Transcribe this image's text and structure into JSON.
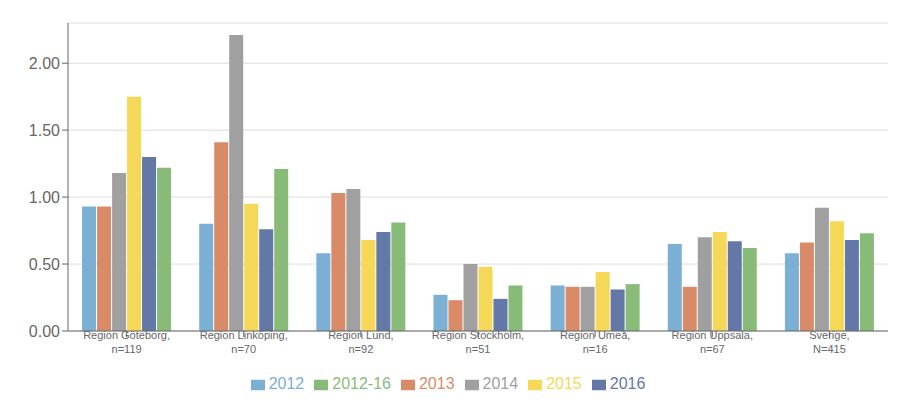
{
  "chart_data": {
    "type": "bar",
    "categories": [
      "Region Göteborg,\nn=119",
      "Region Linköping,\nn=70",
      "Region Lund,\nn=92",
      "Region Stockholm,\nn=51",
      "Region Umeå,\nn=16",
      "Region Uppsala,\nn=67",
      "Sverige,\nN=415"
    ],
    "series": [
      {
        "name": "2012",
        "color": "#7bafd4",
        "values": [
          0.93,
          0.8,
          0.58,
          0.27,
          0.34,
          0.65,
          0.58
        ]
      },
      {
        "name": "2013",
        "color": "#d98b68",
        "values": [
          0.93,
          1.41,
          1.03,
          0.23,
          0.33,
          0.33,
          0.66
        ]
      },
      {
        "name": "2014",
        "color": "#a0a0a0",
        "values": [
          1.18,
          2.21,
          1.06,
          0.5,
          0.33,
          0.7,
          0.92
        ]
      },
      {
        "name": "2015",
        "color": "#f5d858",
        "values": [
          1.75,
          0.95,
          0.68,
          0.48,
          0.44,
          0.74,
          0.82
        ]
      },
      {
        "name": "2016",
        "color": "#6478a8",
        "values": [
          1.3,
          0.76,
          0.74,
          0.24,
          0.31,
          0.67,
          0.68
        ]
      },
      {
        "name": "2012-16",
        "color": "#88bb78",
        "values": [
          1.22,
          1.21,
          0.81,
          0.34,
          0.35,
          0.62,
          0.73
        ]
      }
    ],
    "ylim": [
      0.0,
      2.3
    ],
    "yticks": [
      {
        "value": 0.0,
        "label": "0.00"
      },
      {
        "value": 0.5,
        "label": "0.50"
      },
      {
        "value": 1.0,
        "label": "1.00"
      },
      {
        "value": 1.5,
        "label": "1.50"
      },
      {
        "value": 2.0,
        "label": "2.00"
      }
    ],
    "grid": true,
    "legend": "bottom"
  }
}
